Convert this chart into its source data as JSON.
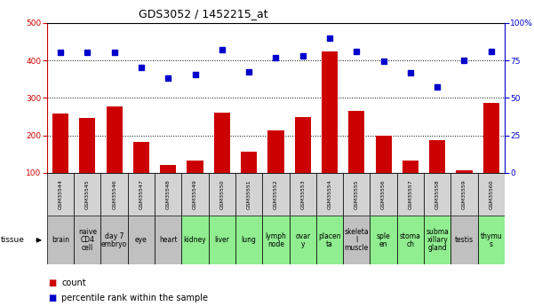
{
  "title": "GDS3052 / 1452215_at",
  "gsm_labels": [
    "GSM35544",
    "GSM35545",
    "GSM35546",
    "GSM35547",
    "GSM35548",
    "GSM35549",
    "GSM35550",
    "GSM35551",
    "GSM35552",
    "GSM35553",
    "GSM35554",
    "GSM35555",
    "GSM35556",
    "GSM35557",
    "GSM35558",
    "GSM35559",
    "GSM35560"
  ],
  "tissue_labels": [
    "brain",
    "naive\nCD4\ncell",
    "day 7\nembryo",
    "eye",
    "heart",
    "kidney",
    "liver",
    "lung",
    "lymph\nnode",
    "ovar\ny",
    "placen\nta",
    "skeleta\nl\nmuscle",
    "sple\nen",
    "stoma\nch",
    "subma\nxillary\ngland",
    "testis",
    "thymu\ns"
  ],
  "tissue_colors": [
    "#c0c0c0",
    "#c0c0c0",
    "#c0c0c0",
    "#c0c0c0",
    "#c0c0c0",
    "#90ee90",
    "#90ee90",
    "#90ee90",
    "#90ee90",
    "#90ee90",
    "#90ee90",
    "#c0c0c0",
    "#90ee90",
    "#90ee90",
    "#90ee90",
    "#c0c0c0",
    "#90ee90"
  ],
  "counts": [
    258,
    247,
    277,
    182,
    122,
    133,
    261,
    157,
    213,
    249,
    423,
    265,
    200,
    133,
    188,
    107,
    287
  ],
  "percentiles": [
    422,
    421,
    422,
    381,
    354,
    362,
    428,
    370,
    408,
    411,
    460,
    423,
    398,
    367,
    330,
    400,
    424
  ],
  "left_ylim": [
    100,
    500
  ],
  "right_ylim": [
    0,
    100
  ],
  "left_yticks": [
    100,
    200,
    300,
    400,
    500
  ],
  "right_yticks": [
    0,
    25,
    50,
    75,
    100
  ],
  "right_yticklabels": [
    "0",
    "25",
    "50",
    "75",
    "100%"
  ],
  "bar_color": "#cc0000",
  "dot_color": "#0000cc",
  "background_color": "#ffffff",
  "title_fontsize": 9,
  "tick_fontsize": 6.5,
  "gsm_fontsize": 4.5,
  "tissue_fontsize": 5.5,
  "legend_fontsize": 7
}
